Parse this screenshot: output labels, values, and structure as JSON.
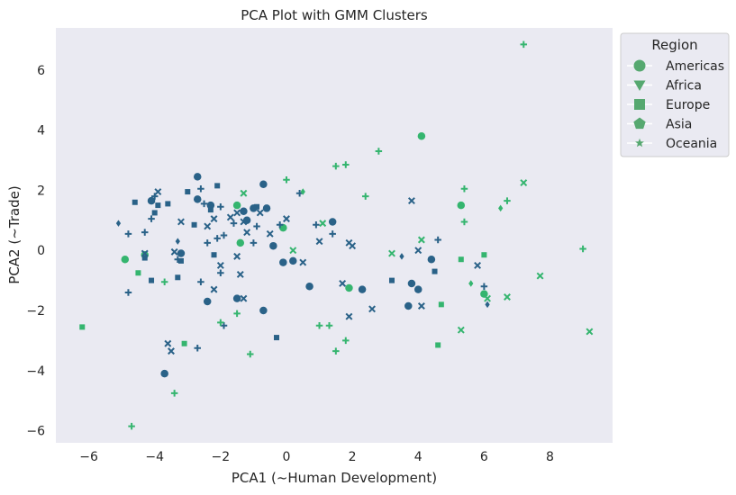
{
  "chart_data": {
    "type": "scatter",
    "title": "PCA Plot with GMM Clusters",
    "xlabel": "PCA1 (~Human Development)",
    "ylabel": "PCA2 (~Trade)",
    "xlim": [
      -7.0,
      9.9
    ],
    "ylim": [
      -6.4,
      7.4
    ],
    "xticks": [
      -6,
      -4,
      -2,
      0,
      2,
      4,
      6,
      8
    ],
    "yticks": [
      -6,
      -4,
      -2,
      0,
      2,
      4,
      6
    ],
    "grid": false,
    "background": "#eaeaf2",
    "cluster_colors": {
      "0": "#2a6288",
      "1": "#35b56f"
    },
    "legend": {
      "title": "Region",
      "placement": "outside-top-right",
      "color": "#56a870",
      "entries": [
        {
          "label": "Americas",
          "marker": "circle"
        },
        {
          "label": "Africa",
          "marker": "x"
        },
        {
          "label": "Europe",
          "marker": "square"
        },
        {
          "label": "Asia",
          "marker": "plus"
        },
        {
          "label": "Oceania",
          "marker": "diamond"
        }
      ]
    },
    "series": [
      {
        "cluster": 0,
        "marker": "circle",
        "points": [
          [
            -2.7,
            2.45
          ],
          [
            -0.7,
            2.2
          ],
          [
            -4.1,
            1.65
          ],
          [
            -2.7,
            1.7
          ],
          [
            -2.3,
            1.5
          ],
          [
            -1.3,
            1.3
          ],
          [
            -1.0,
            1.4
          ],
          [
            -0.6,
            1.4
          ],
          [
            1.4,
            0.95
          ],
          [
            -1.2,
            1.0
          ],
          [
            -3.2,
            -0.1
          ],
          [
            -0.4,
            0.15
          ],
          [
            -2.4,
            -1.7
          ],
          [
            -1.5,
            -1.6
          ],
          [
            -0.7,
            -2.0
          ],
          [
            -0.1,
            -0.4
          ],
          [
            0.2,
            -0.35
          ],
          [
            0.7,
            -1.2
          ],
          [
            2.3,
            -1.3
          ],
          [
            3.7,
            -1.85
          ],
          [
            3.8,
            -1.1
          ],
          [
            4.0,
            -1.3
          ],
          [
            4.4,
            -0.3
          ],
          [
            -3.7,
            -4.1
          ]
        ]
      },
      {
        "cluster": 1,
        "marker": "circle",
        "points": [
          [
            4.1,
            3.8
          ],
          [
            5.3,
            1.5
          ],
          [
            -1.5,
            1.5
          ],
          [
            -0.1,
            0.75
          ],
          [
            -1.4,
            0.25
          ],
          [
            -4.9,
            -0.3
          ],
          [
            -4.3,
            -0.15
          ],
          [
            1.9,
            -1.25
          ],
          [
            6.0,
            -1.45
          ]
        ]
      },
      {
        "cluster": 0,
        "marker": "x",
        "points": [
          [
            -3.9,
            1.95
          ],
          [
            -1.5,
            1.25
          ],
          [
            -0.8,
            1.25
          ],
          [
            -2.2,
            1.05
          ],
          [
            -1.3,
            0.95
          ],
          [
            -1.7,
            1.1
          ],
          [
            0.0,
            1.05
          ],
          [
            -3.2,
            0.95
          ],
          [
            -2.4,
            0.8
          ],
          [
            -1.2,
            0.6
          ],
          [
            -0.5,
            0.55
          ],
          [
            -4.3,
            -0.1
          ],
          [
            -3.4,
            -0.05
          ],
          [
            1.0,
            0.3
          ],
          [
            1.9,
            0.25
          ],
          [
            2.0,
            0.15
          ],
          [
            -1.5,
            -0.2
          ],
          [
            0.5,
            -0.4
          ],
          [
            -2.0,
            -0.5
          ],
          [
            -1.4,
            -0.8
          ],
          [
            -1.3,
            -1.6
          ],
          [
            -2.2,
            -1.3
          ],
          [
            1.7,
            -1.1
          ],
          [
            1.9,
            -2.2
          ],
          [
            2.6,
            -1.95
          ],
          [
            4.1,
            -1.85
          ],
          [
            3.8,
            1.65
          ],
          [
            4.0,
            0.0
          ],
          [
            5.8,
            -0.5
          ],
          [
            -3.5,
            -3.35
          ],
          [
            -3.6,
            -3.1
          ]
        ]
      },
      {
        "cluster": 1,
        "marker": "x",
        "points": [
          [
            -1.3,
            1.9
          ],
          [
            1.1,
            0.9
          ],
          [
            0.2,
            0.0
          ],
          [
            3.2,
            -0.1
          ],
          [
            4.1,
            0.35
          ],
          [
            5.3,
            -2.65
          ],
          [
            6.1,
            -1.6
          ],
          [
            6.7,
            -1.55
          ],
          [
            7.2,
            2.25
          ],
          [
            7.7,
            -0.85
          ],
          [
            9.2,
            -2.7
          ]
        ]
      },
      {
        "cluster": 0,
        "marker": "square",
        "points": [
          [
            -4.6,
            1.6
          ],
          [
            -3.9,
            1.5
          ],
          [
            -4.0,
            1.25
          ],
          [
            -3.6,
            1.55
          ],
          [
            -3.0,
            1.95
          ],
          [
            -2.1,
            2.15
          ],
          [
            -2.3,
            1.35
          ],
          [
            -0.9,
            1.45
          ],
          [
            -2.8,
            0.85
          ],
          [
            -4.3,
            -0.25
          ],
          [
            -4.1,
            -1.0
          ],
          [
            -2.2,
            -0.15
          ],
          [
            -3.2,
            -0.35
          ],
          [
            -3.3,
            -0.9
          ],
          [
            -0.3,
            -2.9
          ],
          [
            3.2,
            -1.0
          ],
          [
            4.5,
            -0.7
          ]
        ]
      },
      {
        "cluster": 1,
        "marker": "square",
        "points": [
          [
            -6.2,
            -2.55
          ],
          [
            -4.5,
            -0.75
          ],
          [
            -3.1,
            -3.1
          ],
          [
            4.6,
            -3.15
          ],
          [
            4.7,
            -1.8
          ],
          [
            5.3,
            -0.3
          ],
          [
            6.0,
            -0.15
          ]
        ]
      },
      {
        "cluster": 0,
        "marker": "plus",
        "points": [
          [
            -4.8,
            0.55
          ],
          [
            -4.0,
            1.8
          ],
          [
            -4.1,
            1.05
          ],
          [
            -4.3,
            0.6
          ],
          [
            -2.5,
            1.55
          ],
          [
            -2.0,
            1.45
          ],
          [
            -1.6,
            0.9
          ],
          [
            -2.6,
            2.05
          ],
          [
            -2.4,
            0.25
          ],
          [
            -2.1,
            0.4
          ],
          [
            -1.9,
            0.5
          ],
          [
            -0.9,
            0.8
          ],
          [
            -0.2,
            0.85
          ],
          [
            0.4,
            1.9
          ],
          [
            0.9,
            0.85
          ],
          [
            1.4,
            0.55
          ],
          [
            -1.0,
            0.25
          ],
          [
            -3.3,
            -0.3
          ],
          [
            -2.0,
            -0.75
          ],
          [
            -2.6,
            -1.05
          ],
          [
            -1.9,
            -2.5
          ],
          [
            -2.7,
            -3.25
          ],
          [
            -4.8,
            -1.4
          ],
          [
            4.6,
            0.35
          ],
          [
            6.0,
            -1.2
          ]
        ]
      },
      {
        "cluster": 1,
        "marker": "plus",
        "points": [
          [
            7.2,
            6.85
          ],
          [
            2.8,
            3.3
          ],
          [
            1.8,
            2.85
          ],
          [
            1.5,
            2.8
          ],
          [
            0.0,
            2.35
          ],
          [
            2.4,
            1.8
          ],
          [
            5.4,
            2.05
          ],
          [
            5.4,
            0.95
          ],
          [
            6.7,
            1.65
          ],
          [
            9.0,
            0.05
          ],
          [
            -1.1,
            -3.45
          ],
          [
            1.0,
            -2.5
          ],
          [
            1.3,
            -2.5
          ],
          [
            1.8,
            -3.0
          ],
          [
            1.5,
            -3.35
          ],
          [
            -1.5,
            -2.1
          ],
          [
            -3.7,
            -1.05
          ],
          [
            -3.4,
            -4.75
          ],
          [
            -4.7,
            -5.85
          ],
          [
            -2.0,
            -2.4
          ]
        ]
      },
      {
        "cluster": 0,
        "marker": "diamond",
        "points": [
          [
            -5.1,
            0.9
          ],
          [
            -3.3,
            0.3
          ],
          [
            3.5,
            -0.2
          ],
          [
            6.1,
            -1.8
          ]
        ]
      },
      {
        "cluster": 1,
        "marker": "diamond",
        "points": [
          [
            0.5,
            1.95
          ],
          [
            5.6,
            -1.1
          ],
          [
            6.5,
            1.4
          ]
        ]
      }
    ]
  }
}
